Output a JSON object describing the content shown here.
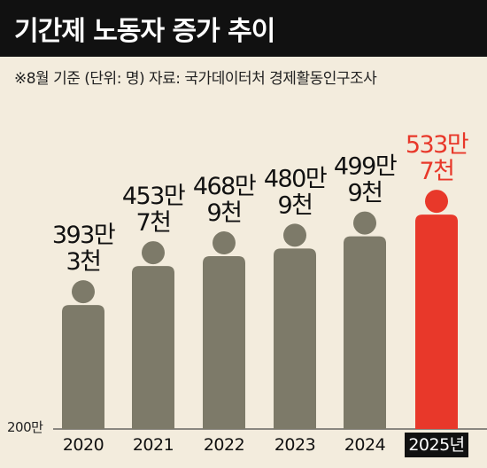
{
  "title": "기간제 노동자 증가 추이",
  "subtitle": "※8월 기준 (단위: 명) 자료: 국가데이터처 경제활동인구조사",
  "colors": {
    "bar": "#7d7a69",
    "highlight": "#e8382a",
    "background": "#f3ecdd",
    "title_bg": "#111111",
    "label": "#111111"
  },
  "chart_data": {
    "type": "bar",
    "baseline_label": "200만",
    "ylim": [
      2000000,
      5600000
    ],
    "categories": [
      "2020",
      "2021",
      "2022",
      "2023",
      "2024",
      "2025년"
    ],
    "values": [
      3930000,
      4537000,
      4689000,
      4809000,
      4999000,
      5337000
    ],
    "value_labels": [
      [
        "393만",
        "3천"
      ],
      [
        "453만",
        "7천"
      ],
      [
        "468만",
        "9천"
      ],
      [
        "480만",
        "9천"
      ],
      [
        "499만",
        "9천"
      ],
      [
        "533만",
        "7천"
      ]
    ],
    "highlight_index": 5
  }
}
